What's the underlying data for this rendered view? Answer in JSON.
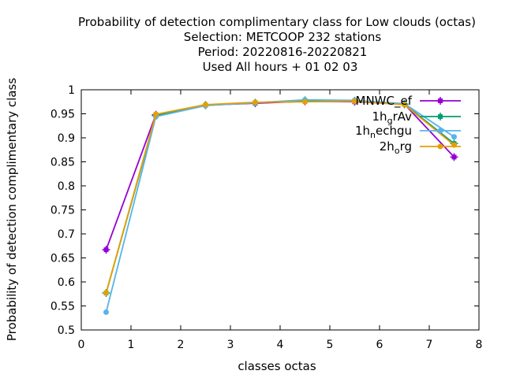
{
  "chart_data": {
    "type": "line",
    "title_lines": [
      "Probability of detection complimentary class  for Low clouds (octas)",
      "Selection: METCOOP    232 stations",
      "Period: 20220816-20220821",
      "Used  All hours  + 01 02 03"
    ],
    "xlabel": "classes octas",
    "ylabel": "Probability of detection complimentary class",
    "xlim": [
      0,
      8
    ],
    "ylim": [
      0.5,
      1
    ],
    "x_ticks": [
      "0",
      "1",
      "2",
      "3",
      "4",
      "5",
      "6",
      "7",
      "8"
    ],
    "y_ticks": [
      "0.5",
      "0.55",
      "0.6",
      "0.65",
      "0.7",
      "0.75",
      "0.8",
      "0.85",
      "0.9",
      "0.95",
      "1"
    ],
    "grid": false,
    "legend_position": "top-right",
    "x": [
      0.5,
      1.5,
      2.5,
      3.5,
      4.5,
      5.5,
      6.5,
      7.5
    ],
    "series": [
      {
        "name": "MNWC_ef",
        "name_main": "MNWC",
        "name_sub": "ef",
        "color": "#9400d3",
        "marker": "plus-square",
        "values": [
          0.667,
          0.948,
          0.968,
          0.972,
          0.976,
          0.975,
          0.97,
          0.86
        ]
      },
      {
        "name": "1hgrAv",
        "name_main": "1h",
        "name_sub": "g",
        "name_rest": "rAv",
        "color": "#009e73",
        "marker": "plus-square",
        "values": [
          0.577,
          0.946,
          0.968,
          0.973,
          0.978,
          0.977,
          0.97,
          0.888
        ]
      },
      {
        "name": "1hnechgu",
        "name_main": "1h",
        "name_sub": "n",
        "name_rest": "echgu",
        "color": "#56b4e9",
        "marker": "circle",
        "values": [
          0.537,
          0.944,
          0.967,
          0.973,
          0.979,
          0.978,
          0.971,
          0.902
        ]
      },
      {
        "name": "2horg",
        "name_main": "2h",
        "name_sub": "o",
        "name_rest": "rg",
        "color": "#e69f00",
        "marker": "circle",
        "values": [
          0.577,
          0.949,
          0.969,
          0.974,
          0.975,
          0.976,
          0.969,
          0.885
        ]
      }
    ]
  }
}
